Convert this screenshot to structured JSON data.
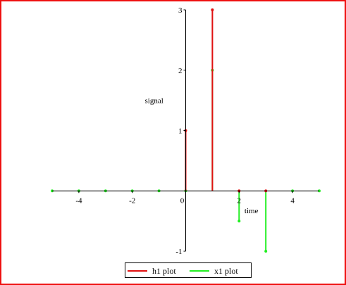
{
  "chart_data": {
    "type": "line",
    "style": "stem",
    "xlabel": "time",
    "ylabel": "signal",
    "xlim": [
      -5,
      5
    ],
    "ylim": [
      -1,
      3
    ],
    "x_ticks": [
      -4,
      -2,
      0,
      2,
      4
    ],
    "y_ticks": [
      -1,
      1,
      2,
      3
    ],
    "grid": false,
    "legend_position": "bottom",
    "series": [
      {
        "name": "h1 plot",
        "color": "#e01010",
        "x": [
          0,
          1,
          2,
          3
        ],
        "values": [
          1,
          3,
          0,
          0
        ]
      },
      {
        "name": "x1 plot",
        "color": "#22ee22",
        "x": [
          -5,
          -4,
          -3,
          -2,
          -1,
          0,
          1,
          2,
          3,
          4,
          5
        ],
        "values": [
          0,
          0,
          0,
          0,
          0,
          0,
          2,
          -0.5,
          -1,
          0,
          0
        ]
      }
    ]
  }
}
